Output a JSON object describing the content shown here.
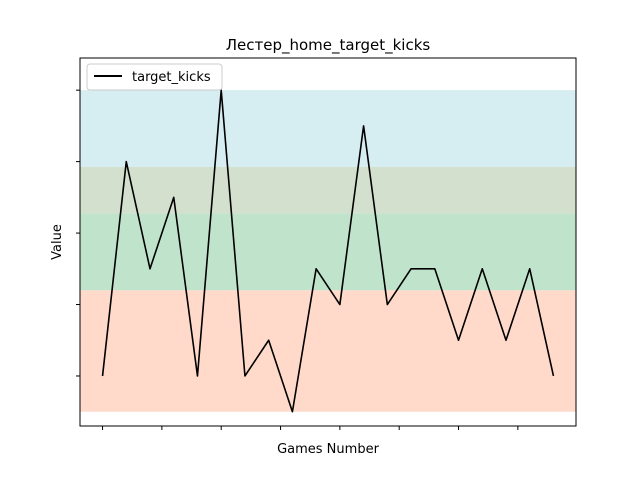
{
  "chart_data": {
    "type": "line",
    "title": "Лестер_home_target_kicks",
    "xlabel": "Games Number",
    "ylabel": "Value",
    "legend_position": "top-left",
    "grid": false,
    "x": [
      0,
      1,
      2,
      3,
      4,
      5,
      6,
      7,
      8,
      9,
      10,
      11,
      12,
      13,
      14,
      15,
      16,
      17,
      18,
      19
    ],
    "series": [
      {
        "name": "target_kicks",
        "color": "#000000",
        "values": [
          2,
          8,
          5,
          7,
          2,
          10,
          2,
          3,
          1,
          5,
          4,
          9,
          4,
          5,
          5,
          3,
          5,
          3,
          5,
          2
        ]
      }
    ],
    "ylim": [
      0.6,
      10.9
    ],
    "xlim": [
      -0.95,
      19.95
    ],
    "bands": [
      {
        "from": 1,
        "to": 4.4,
        "color": "#ffdacb"
      },
      {
        "from": 4.4,
        "to": 6.55,
        "color": "#c0e4cb"
      },
      {
        "from": 6.55,
        "to": 7.85,
        "color": "#d3e0cd"
      },
      {
        "from": 7.85,
        "to": 10,
        "color": "#d6edf2"
      }
    ],
    "x_ticks": [
      0,
      2.5,
      5,
      7.5,
      10,
      12.5,
      15,
      17.5
    ],
    "y_ticks": [
      2,
      4,
      6,
      8,
      10
    ]
  }
}
